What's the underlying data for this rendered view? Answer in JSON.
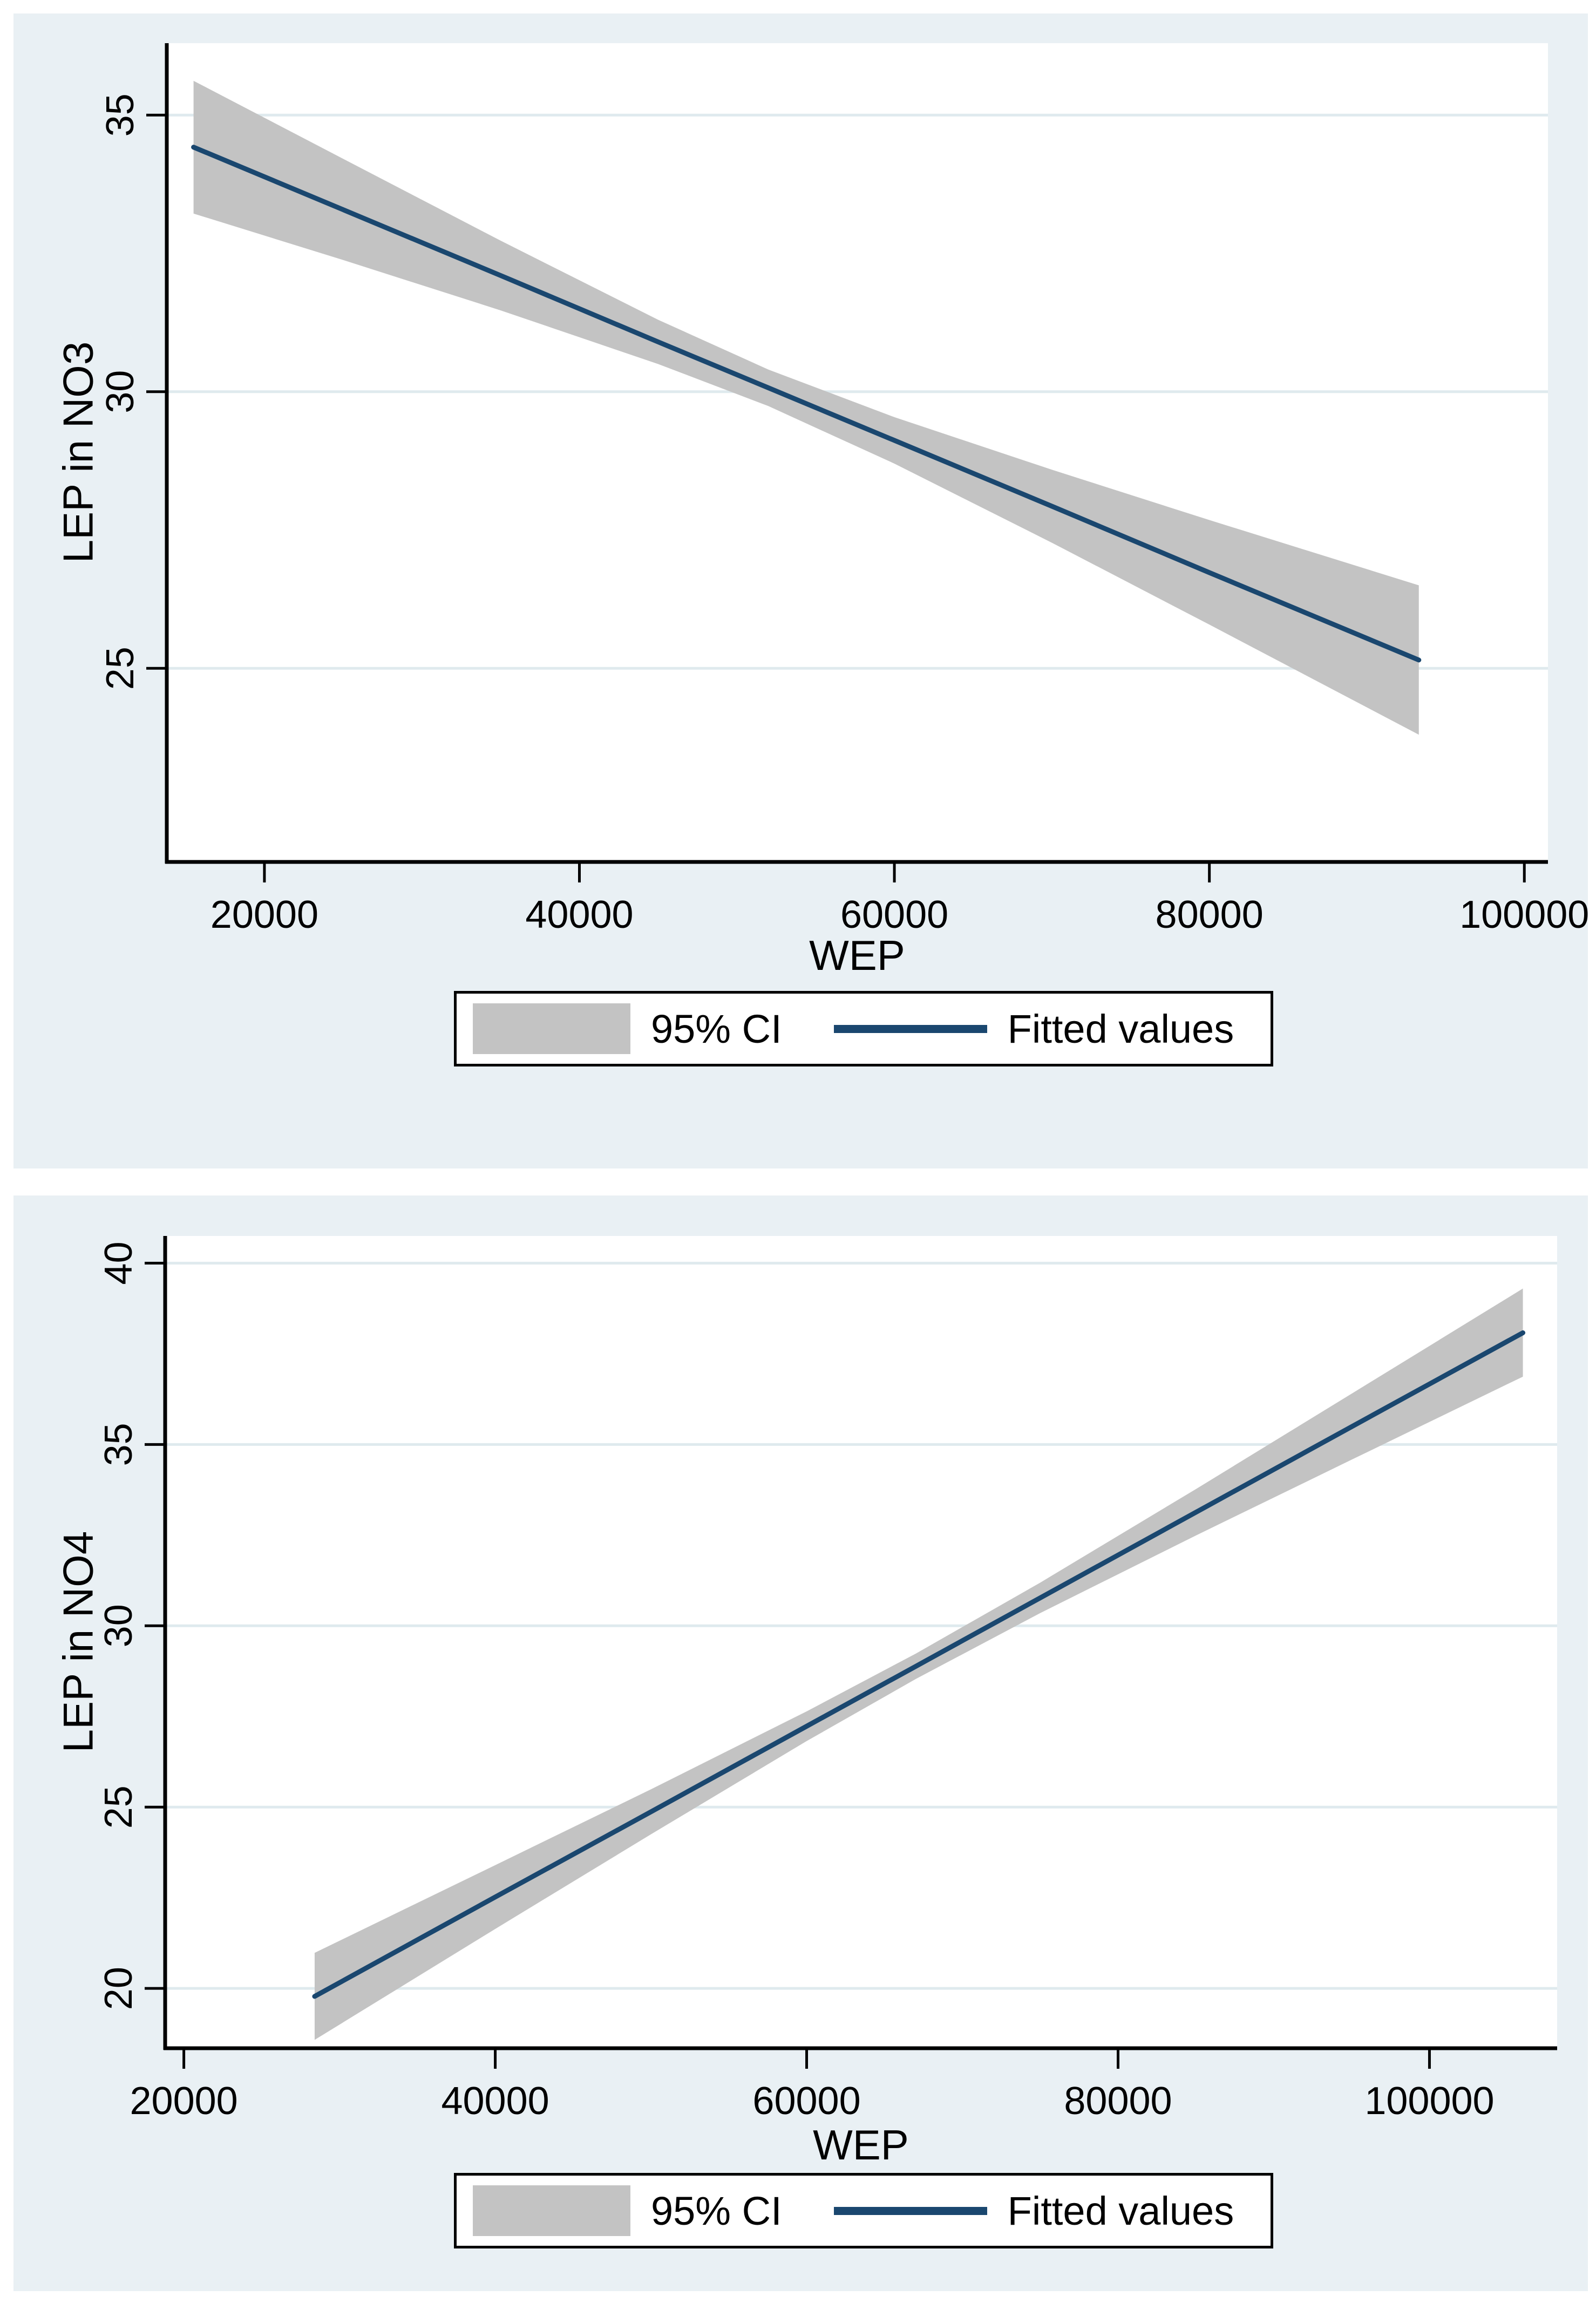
{
  "page_title": "",
  "legend_labels": {
    "ci": "95% CI",
    "fitted": "Fitted values"
  },
  "colors": {
    "figure_background": "#e9f0f4",
    "plot_background": "#ffffff",
    "grid": "#dfeaee",
    "ci_band": "#c3c3c3",
    "fitted_line": "#1a476f",
    "axis": "#000000",
    "text": "#000000"
  },
  "chart_data": [
    {
      "type": "area",
      "title": "",
      "xlabel": "WEP",
      "ylabel": "LEP in NO3",
      "grid": true,
      "legend_position": "bottom",
      "legend": [
        "95% CI",
        "Fitted values"
      ],
      "xlim": [
        13800,
        101500
      ],
      "ylim": [
        21.5,
        36.3
      ],
      "xticks": [
        20000,
        40000,
        60000,
        80000,
        100000
      ],
      "yticks": [
        25,
        30,
        35
      ],
      "x": [
        15500,
        25000,
        35000,
        45000,
        52000,
        60000,
        70000,
        80000,
        93300
      ],
      "series": [
        {
          "name": "Fitted values",
          "values": [
            34.42,
            33.29,
            32.1,
            30.9,
            30.07,
            29.12,
            27.93,
            26.73,
            25.15
          ]
        },
        {
          "name": "95% CI upper",
          "values": [
            35.62,
            34.21,
            32.73,
            31.3,
            30.4,
            29.54,
            28.59,
            27.68,
            26.5
          ]
        },
        {
          "name": "95% CI lower",
          "values": [
            33.22,
            32.38,
            31.47,
            30.5,
            29.74,
            28.7,
            27.27,
            25.79,
            23.8
          ]
        }
      ]
    },
    {
      "type": "area",
      "title": "",
      "xlabel": "WEP",
      "ylabel": "LEP in NO4",
      "grid": true,
      "legend_position": "bottom",
      "legend": [
        "95% CI",
        "Fitted values"
      ],
      "xlim": [
        18800,
        108200
      ],
      "ylim": [
        18.35,
        40.75
      ],
      "xticks": [
        20000,
        40000,
        60000,
        80000,
        100000
      ],
      "yticks": [
        20,
        25,
        30,
        35,
        40
      ],
      "x": [
        28400,
        40000,
        50000,
        60000,
        67000,
        75000,
        85000,
        95000,
        106000
      ],
      "series": [
        {
          "name": "Fitted values",
          "values": [
            19.78,
            22.52,
            24.87,
            27.23,
            28.88,
            30.77,
            33.13,
            35.49,
            38.08
          ]
        },
        {
          "name": "95% CI upper",
          "values": [
            20.98,
            23.4,
            25.49,
            27.64,
            29.23,
            31.19,
            33.77,
            36.4,
            39.3
          ]
        },
        {
          "name": "95% CI lower",
          "values": [
            18.58,
            21.64,
            24.25,
            26.82,
            28.53,
            30.35,
            32.49,
            34.58,
            36.87
          ]
        }
      ]
    }
  ]
}
